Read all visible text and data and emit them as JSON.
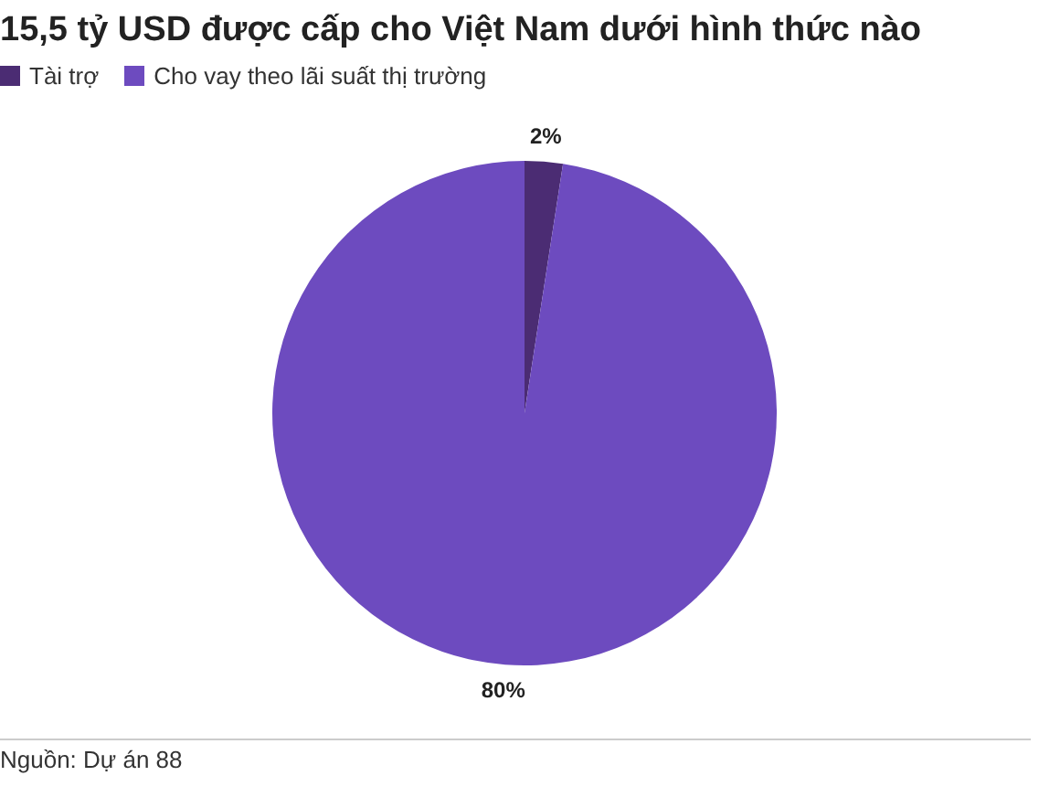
{
  "chart_data": {
    "type": "pie",
    "title": "15,5 tỷ USD được cấp cho Việt Nam dưới hình thức nào",
    "categories": [
      "Tài trợ",
      "Cho vay theo lãi suất thị trường"
    ],
    "values": [
      2,
      80
    ],
    "colors": [
      "#4b2c73",
      "#6d4bbf"
    ],
    "value_labels": [
      "2%",
      "80%"
    ],
    "legend": "top left",
    "annotations": [
      "Nguồn: Dự án 88"
    ]
  }
}
